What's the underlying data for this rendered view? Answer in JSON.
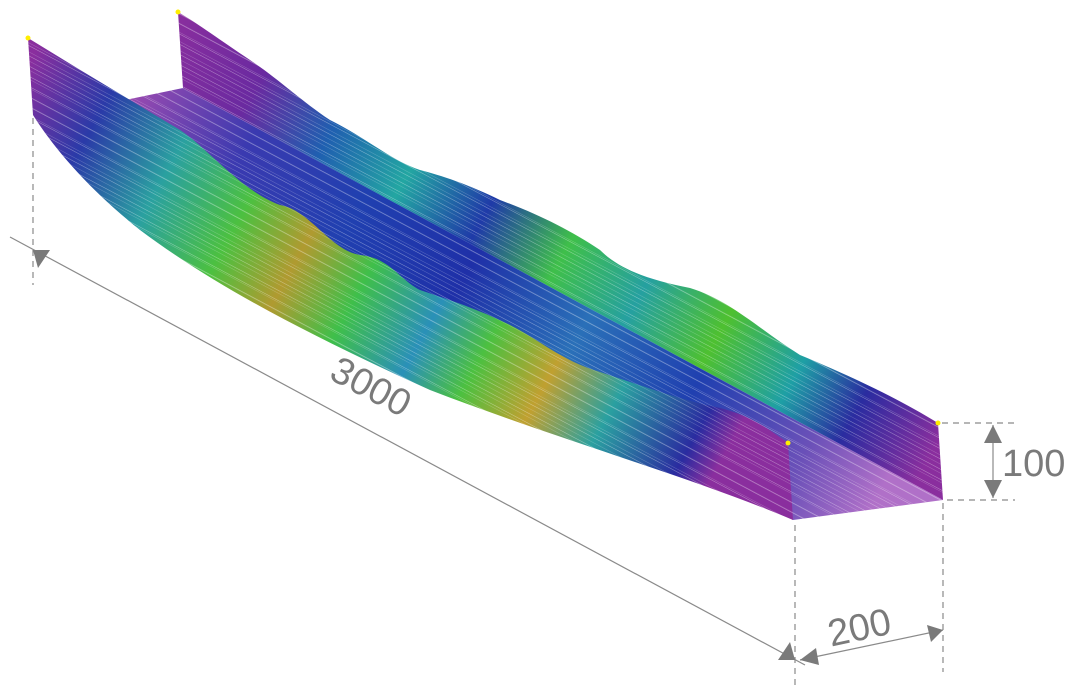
{
  "dimensions": {
    "length": 3000,
    "height": 100,
    "width": 200
  }
}
